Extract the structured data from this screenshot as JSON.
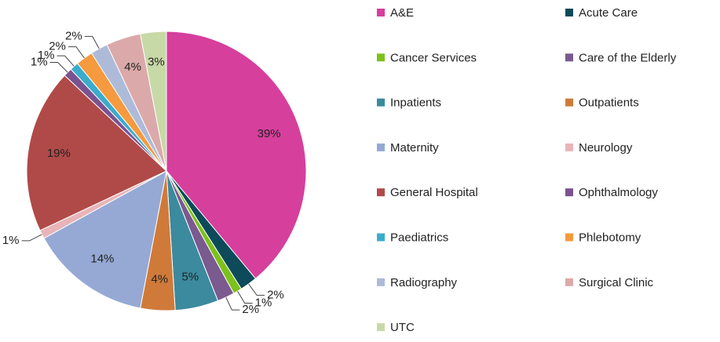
{
  "chart_data": {
    "type": "pie",
    "categories": [
      "A&E",
      "Acute Care",
      "Cancer Services",
      "Care of the Elderly",
      "Inpatients",
      "Outpatients",
      "Maternity",
      "Neurology",
      "General Hospital",
      "Ophthalmology",
      "Paediatrics",
      "Phlebotomy",
      "Radiography",
      "Surgical Clinic",
      "UTC"
    ],
    "values": [
      39,
      2,
      1,
      2,
      5,
      4,
      14,
      1,
      19,
      1,
      1,
      2,
      2,
      4,
      3
    ],
    "value_labels": [
      "39%",
      "2%",
      "1%",
      "2%",
      "5%",
      "4%",
      "14%",
      "1%",
      "19%",
      "1%",
      "1%",
      "2%",
      "2%",
      "4%",
      "3%"
    ],
    "colors": [
      "#d63f9c",
      "#0d4a5a",
      "#7dc11c",
      "#7a5a8f",
      "#3b8a9e",
      "#d07a3a",
      "#95a9d4",
      "#e8b4b8",
      "#b04a48",
      "#7b5290",
      "#3aaccc",
      "#f59a3e",
      "#adbbd9",
      "#dba9a9",
      "#c8d9a8"
    ],
    "legend": "right"
  }
}
